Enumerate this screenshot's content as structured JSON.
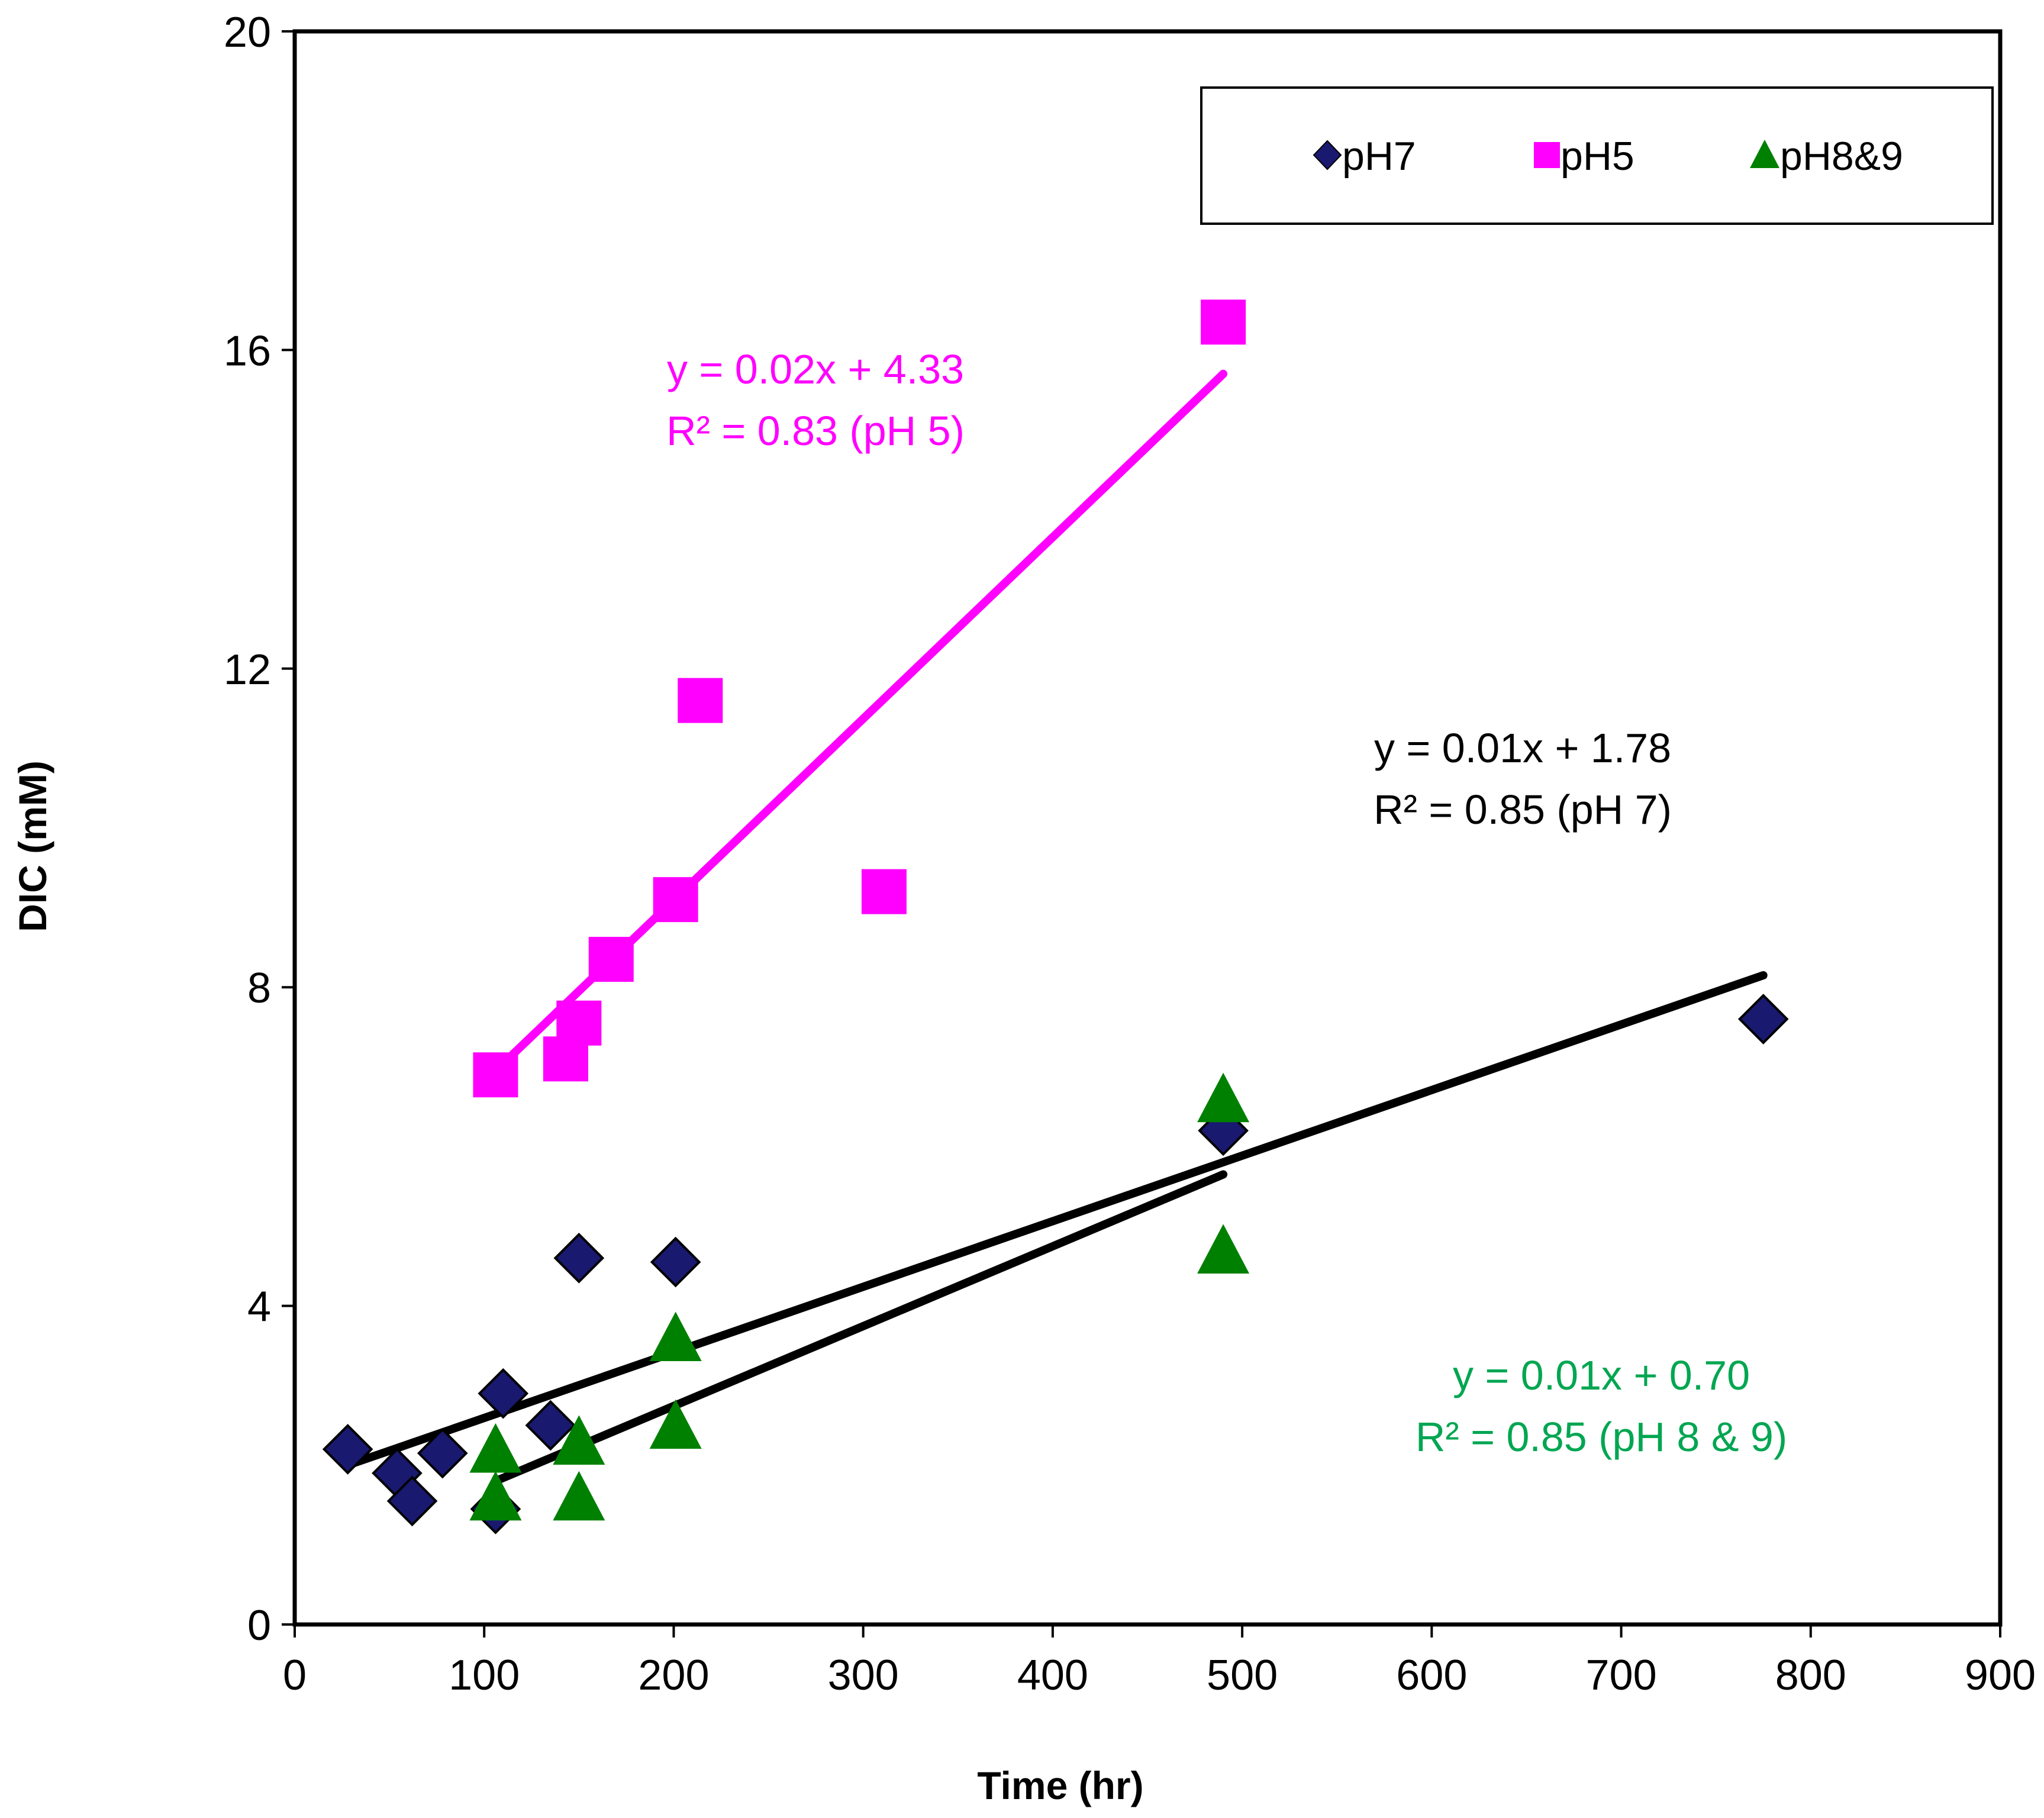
{
  "chart_data": {
    "type": "scatter",
    "xlabel": "Time (hr)",
    "ylabel": "DIC (mM)",
    "xlim": [
      0,
      900
    ],
    "ylim": [
      0,
      20
    ],
    "x_ticks": [
      0,
      100,
      200,
      300,
      400,
      500,
      600,
      700,
      800,
      900
    ],
    "y_ticks": [
      0,
      4,
      8,
      12,
      16,
      20
    ],
    "grid": false,
    "legend": {
      "position": "top-right"
    },
    "series": [
      {
        "name": "pH7",
        "marker": "diamond",
        "color": "#191970",
        "points": [
          [
            28,
            2.2
          ],
          [
            54,
            1.9
          ],
          [
            62,
            1.55
          ],
          [
            78,
            2.15
          ],
          [
            106,
            1.45
          ],
          [
            110,
            2.9
          ],
          [
            135,
            2.5
          ],
          [
            150,
            4.6
          ],
          [
            201,
            4.55
          ],
          [
            490,
            6.2
          ],
          [
            775,
            7.6
          ]
        ],
        "trendline": {
          "x": [
            28,
            775
          ],
          "y": [
            2.0,
            8.15
          ]
        }
      },
      {
        "name": "pH5",
        "marker": "square",
        "color": "#ff00ff",
        "points": [
          [
            106,
            6.9
          ],
          [
            143,
            7.1
          ],
          [
            150,
            7.55
          ],
          [
            167,
            8.35
          ],
          [
            201,
            9.1
          ],
          [
            214,
            11.6
          ],
          [
            311,
            9.2
          ],
          [
            490,
            16.35
          ]
        ],
        "trendline": {
          "x": [
            106,
            490
          ],
          "y": [
            6.95,
            15.7
          ]
        }
      },
      {
        "name": "pH8&9",
        "marker": "triangle",
        "color": "#008000",
        "points": [
          [
            106,
            2.2
          ],
          [
            106,
            1.6
          ],
          [
            150,
            2.3
          ],
          [
            150,
            1.6
          ],
          [
            201,
            3.6
          ],
          [
            201,
            2.5
          ],
          [
            490,
            6.6
          ],
          [
            490,
            4.7
          ]
        ],
        "trendline": {
          "x": [
            106,
            490
          ],
          "y": [
            1.8,
            5.65
          ]
        }
      }
    ],
    "annotations": [
      {
        "id": "ph5",
        "lines": [
          "y = 0.02x + 4.33",
          "R² = 0.83 (pH 5)"
        ],
        "color": "#ff00ff"
      },
      {
        "id": "ph7",
        "lines": [
          "y = 0.01x + 1.78",
          "R² = 0.85 (pH 7)"
        ],
        "color": "#000000"
      },
      {
        "id": "ph89",
        "lines": [
          "y = 0.01x + 0.70",
          "R² = 0.85 (pH 8 & 9)"
        ],
        "color": "#00a651"
      }
    ]
  }
}
